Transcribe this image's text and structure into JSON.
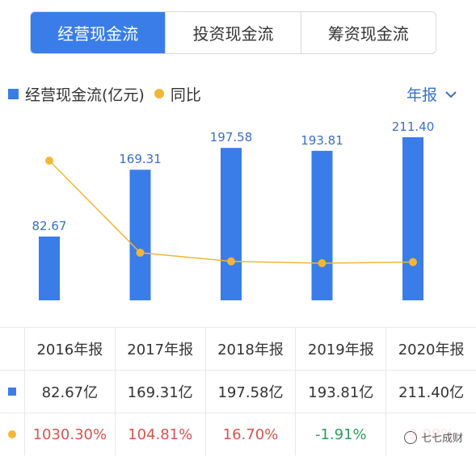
{
  "tabs": [
    {
      "label": "经营现金流",
      "active": true
    },
    {
      "label": "投资现金流",
      "active": false
    },
    {
      "label": "筹资现金流",
      "active": false
    }
  ],
  "legend": {
    "bar_label": "经营现金流(亿元)",
    "line_label": "同比"
  },
  "period": {
    "label": "年报",
    "icon": "chevron-down-icon"
  },
  "colors": {
    "bar": "#3a7de8",
    "line": "#f2b637",
    "positive": "#d9534f",
    "negative": "#2e9a5e",
    "tab_active": "#3a7de8"
  },
  "chart_data": {
    "type": "bar",
    "categories": [
      "2016年报",
      "2017年报",
      "2018年报",
      "2019年报",
      "2020年报"
    ],
    "series": [
      {
        "name": "经营现金流(亿元)",
        "type": "bar",
        "values": [
          82.67,
          169.31,
          197.58,
          193.81,
          211.4
        ],
        "labels": [
          "82.67",
          "169.31",
          "197.58",
          "193.81",
          "211.40"
        ]
      },
      {
        "name": "同比",
        "type": "line",
        "values": [
          1030.3,
          104.81,
          16.7,
          -1.91,
          9.08
        ]
      }
    ]
  },
  "table": {
    "headers": [
      "2016年报",
      "2017年报",
      "2018年报",
      "2019年报",
      "2020年报"
    ],
    "values_row": [
      "82.67亿",
      "169.31亿",
      "197.58亿",
      "193.81亿",
      "211.40亿"
    ],
    "yoy_row": [
      "1030.30%",
      "104.81%",
      "16.70%",
      "-1.91%",
      "9.08%"
    ]
  },
  "watermark": {
    "text": "七七成财"
  }
}
